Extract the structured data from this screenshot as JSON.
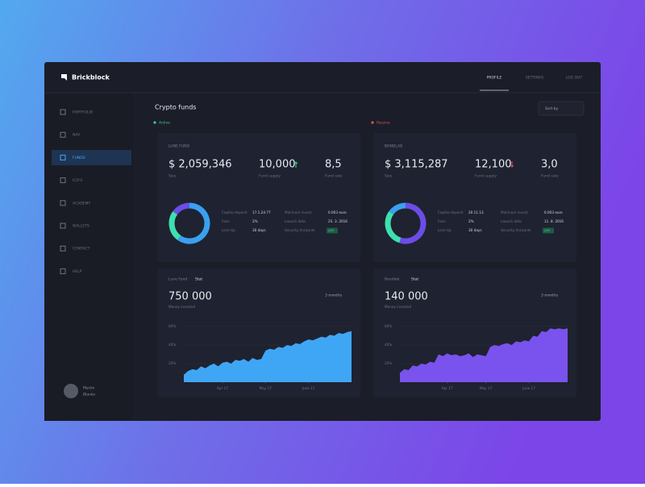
{
  "brand": "Brickblock",
  "nav": [
    "PROFILE",
    "SETTINGS",
    "LOG OUT"
  ],
  "sidebar": [
    "PORTFOLIO",
    "NAV",
    "FUNDS",
    "ICO'S",
    "ACADEMY",
    "WALLETS",
    "CONTACT",
    "HELP"
  ],
  "user": [
    "Martin",
    "Blanko"
  ],
  "page_title": "Crypto funds",
  "sort": "Sort by",
  "groups": [
    "Active",
    "Passive"
  ],
  "funds": [
    {
      "name": "LUNE FUND",
      "amount": "$ 2,059,346",
      "amount_label": "Size",
      "supply": "10,000",
      "supply_label": "Fund supply",
      "rate": "8,5",
      "rate_label": "Fund rate",
      "details": [
        [
          "Capital deposit",
          "17.1.24.77",
          "Minimum invest",
          "0.003 euro"
        ],
        [
          "Fees",
          "2%",
          "Launch date",
          "25. 3. 2016"
        ],
        [
          "Lock-Up",
          "30 days",
          "Security Accounts",
          "yes"
        ]
      ],
      "donut": {
        "type": "pie",
        "values": [
          60,
          25,
          15
        ],
        "colors": [
          "#3aa0f0",
          "#3ee0b0",
          "#6b4de6"
        ]
      },
      "chart": {
        "type": "area",
        "title": "Lune Fund",
        "tag": "Stat",
        "total": "750 000",
        "total_label": "Money invested",
        "period": "3 months",
        "color": "#3fa6f5",
        "values": [
          8,
          12,
          14,
          13,
          17,
          15,
          18,
          20,
          17,
          21,
          22,
          20,
          24,
          23,
          25,
          22,
          26,
          24,
          25,
          34,
          36,
          35,
          38,
          37,
          40,
          39,
          42,
          41,
          44,
          46,
          45,
          47,
          49,
          48,
          51,
          50,
          53,
          52,
          54,
          55
        ],
        "ylim": [
          0,
          66
        ],
        "yticks": [
          {
            "value": 20,
            "label": "20%"
          },
          {
            "value": 40,
            "label": "40%"
          },
          {
            "value": 60,
            "label": "60%"
          }
        ],
        "xlim": [
          0,
          39
        ],
        "xticks": [
          {
            "value": 9,
            "label": "Apr 17"
          },
          {
            "value": 19,
            "label": "May 17"
          },
          {
            "value": 29,
            "label": "June 17"
          }
        ]
      }
    },
    {
      "name": "BONDLAB",
      "amount": "$ 3,115,287",
      "amount_label": "Size",
      "supply": "12,100",
      "supply_label": "Fund supply",
      "rate": "3,0",
      "rate_label": "Fund rate",
      "details": [
        [
          "Capital deposit",
          "20.11.13",
          "Minimum invest",
          "0.003 euro"
        ],
        [
          "Fees",
          "2%",
          "Launch date",
          "11. 8. 2016"
        ],
        [
          "Lock-Up",
          "30 days",
          "Security Accounts",
          "yes"
        ]
      ],
      "donut": {
        "type": "pie",
        "values": [
          55,
          30,
          15
        ],
        "colors": [
          "#6b4de6",
          "#3ee0b0",
          "#3aa0f0"
        ]
      },
      "chart": {
        "type": "area",
        "title": "Bondlab",
        "tag": "Stat",
        "total": "140 000",
        "total_label": "Money invested",
        "period": "3 months",
        "color": "#7a52ee",
        "values": [
          10,
          14,
          13,
          18,
          17,
          20,
          19,
          22,
          21,
          30,
          28,
          31,
          29,
          30,
          28,
          29,
          31,
          27,
          30,
          29,
          28,
          38,
          40,
          39,
          41,
          42,
          40,
          44,
          43,
          45,
          44,
          50,
          49,
          55,
          54,
          58,
          57,
          58,
          57,
          58
        ],
        "ylim": [
          0,
          66
        ],
        "yticks": [
          {
            "value": 20,
            "label": "20%"
          },
          {
            "value": 40,
            "label": "40%"
          },
          {
            "value": 60,
            "label": "60%"
          }
        ],
        "xlim": [
          0,
          39
        ],
        "xticks": [
          {
            "value": 11,
            "label": "Apr 17"
          },
          {
            "value": 20,
            "label": "May 17"
          },
          {
            "value": 30,
            "label": "June 17"
          }
        ]
      }
    }
  ]
}
